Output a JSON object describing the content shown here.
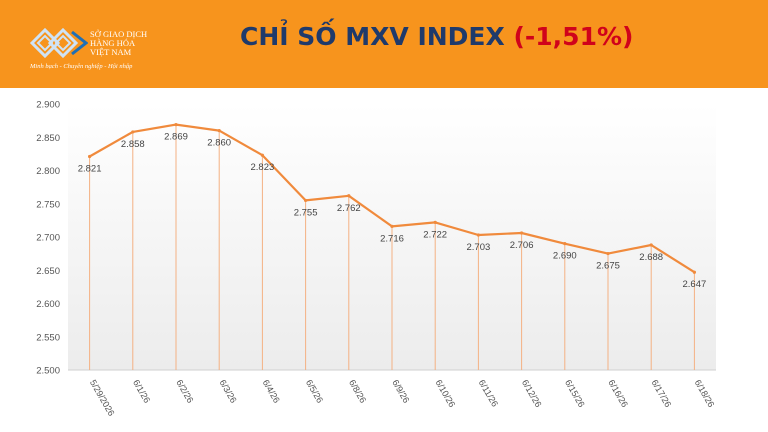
{
  "header": {
    "logo_name": "SỞ GIAO DỊCH HÀNG HÓA VIỆT NAM",
    "logo_lines": [
      "SỞ GIAO DỊCH",
      "HÀNG HÓA",
      "VIỆT NAM"
    ],
    "tagline": "Minh bạch - Chuyên nghiệp - Hội nhập",
    "title_main": "CHỈ SỐ MXV INDEX ",
    "title_change": "(-1,51%)",
    "colors": {
      "banner": "#f7941d",
      "title": "#1f3a6b",
      "change": "#d0021b",
      "line": "#f08a3c"
    }
  },
  "chart_data": {
    "type": "line",
    "title": "CHỈ SỐ MXV INDEX (-1,51%)",
    "xlabel": "",
    "ylabel": "",
    "categories": [
      "5/29/2026",
      "6/1/26",
      "6/2/26",
      "6/3/26",
      "6/4/26",
      "6/5/26",
      "6/8/26",
      "6/9/26",
      "6/10/26",
      "6/11/26",
      "6/12/26",
      "6/15/26",
      "6/16/26",
      "6/17/26",
      "6/18/26"
    ],
    "values": [
      2821,
      2858,
      2869,
      2860,
      2823,
      2755,
      2762,
      2716,
      2722,
      2703,
      2706,
      2690,
      2675,
      2688,
      2647
    ],
    "value_labels": [
      "2.821",
      "2.858",
      "2.869",
      "2.860",
      "2.823",
      "2.755",
      "2.762",
      "2.716",
      "2.722",
      "2.703",
      "2.706",
      "2.690",
      "2.675",
      "2.688",
      "2.647"
    ],
    "yticks": [
      2500,
      2550,
      2600,
      2650,
      2700,
      2750,
      2800,
      2850,
      2900
    ],
    "ytick_labels": [
      "2.500",
      "2.550",
      "2.600",
      "2.650",
      "2.700",
      "2.750",
      "2.800",
      "2.850",
      "2.900"
    ],
    "ylim": [
      2500,
      2900
    ],
    "grid": false,
    "legend": "none"
  }
}
